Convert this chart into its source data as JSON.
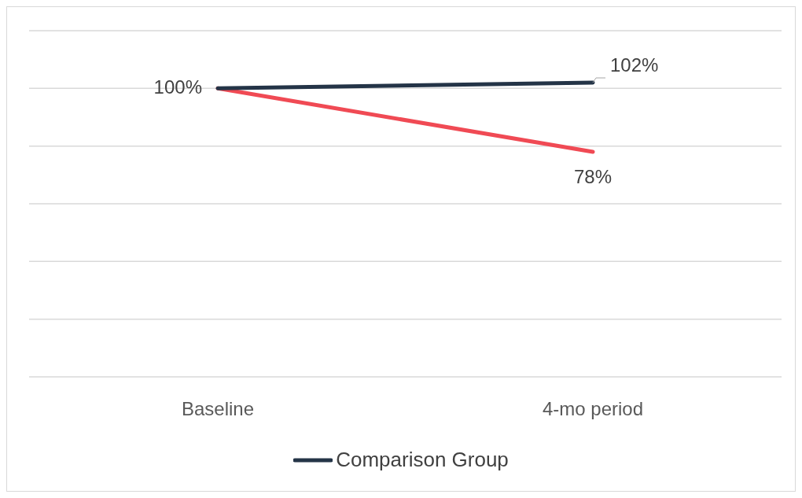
{
  "chart_data": {
    "type": "line",
    "categories": [
      "Baseline",
      "4-mo period"
    ],
    "series": [
      {
        "color": "#f04a54",
        "values": [
          100,
          78
        ],
        "value_labels": [
          null,
          "78%"
        ]
      },
      {
        "name": "Comparison Group",
        "color": "#243447",
        "values": [
          100,
          102
        ],
        "value_labels": [
          "100%",
          "102%"
        ]
      }
    ],
    "ylim": [
      0,
      120
    ],
    "yticks": [
      0,
      20,
      40,
      60,
      80,
      100,
      120
    ],
    "tick_labels": "x",
    "grid": "y",
    "legend": "bottom",
    "marker": "none",
    "line_style": "solid"
  }
}
